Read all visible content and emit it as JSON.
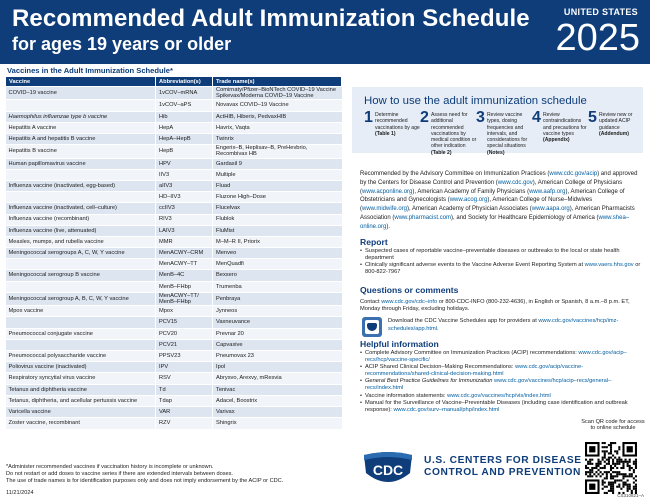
{
  "header": {
    "title": "Recommended Adult Immunization Schedule",
    "subtitle": "for ages 19 years or older",
    "country": "UNITED STATES",
    "year": "2025"
  },
  "vaccine_table": {
    "caption": "Vaccines in the Adult Immunization Schedule*",
    "columns": [
      "Vaccine",
      "Abbreviation(s)",
      "Trade name(s)"
    ],
    "rows": [
      {
        "vaccine": "COVID–19 vaccine",
        "abbr": "1vCOV–mRNA",
        "trade": "Comirnaty/Pfizer–BioNTech COVID–19 Vaccine Spikevax/Moderna COVID–19 Vaccine"
      },
      {
        "vaccine": "",
        "abbr": "1vCOV–aPS",
        "trade": "Novavax COVID–19 Vaccine"
      },
      {
        "vaccine": "Haemophilus influenzae type b vaccine",
        "abbr": "Hib",
        "trade": "ActHIB, Hiberix, PedvaxHIB"
      },
      {
        "vaccine": "Hepatitis A vaccine",
        "abbr": "HepA",
        "trade": "Havrix, Vaqta"
      },
      {
        "vaccine": "Hepatitis A and hepatitis B vaccine",
        "abbr": "HepA–HepB",
        "trade": "Twinrix"
      },
      {
        "vaccine": "Hepatitis B vaccine",
        "abbr": "HepB",
        "trade": "Engerix–B, Heplisav–B, PreHevbrio, Recombivax HB"
      },
      {
        "vaccine": "Human papillomavirus vaccine",
        "abbr": "HPV",
        "trade": "Gardasil 9"
      },
      {
        "vaccine": "",
        "abbr": "IIV3",
        "trade": "Multiple"
      },
      {
        "vaccine": "Influenza vaccine (inactivated, egg-based)",
        "abbr": "aIIV3",
        "trade": "Fluad"
      },
      {
        "vaccine": "",
        "abbr": "HD–IIV3",
        "trade": "Fluzone High–Dose"
      },
      {
        "vaccine": "Influenza vaccine (inactivated, cell–culture)",
        "abbr": "ccIIV3",
        "trade": "Flucelvax"
      },
      {
        "vaccine": "Influenza vaccine (recombinant)",
        "abbr": "RIV3",
        "trade": "Flublok"
      },
      {
        "vaccine": "Influenza vaccine (live, attenuated)",
        "abbr": "LAIV3",
        "trade": "FluMist"
      },
      {
        "vaccine": "Measles, mumps, and rubella vaccine",
        "abbr": "MMR",
        "trade": "M–M–R II, Priorix"
      },
      {
        "vaccine": "Meningococcal serogroups A, C, W, Y vaccine",
        "abbr": "MenACWY–CRM",
        "trade": "Menveo"
      },
      {
        "vaccine": "",
        "abbr": "MenACWY–TT",
        "trade": "MenQuadfi"
      },
      {
        "vaccine": "Meningococcal serogroup B vaccine",
        "abbr": "MenB–4C",
        "trade": "Bexsero"
      },
      {
        "vaccine": "",
        "abbr": "MenB–FHbp",
        "trade": "Trumenba"
      },
      {
        "vaccine": "Meningococcal serogroup A, B, C, W, Y vaccine",
        "abbr": "MenACWY–TT/ MenB–FHbp",
        "trade": "Penbraya"
      },
      {
        "vaccine": "Mpox vaccine",
        "abbr": "Mpox",
        "trade": "Jynneos"
      },
      {
        "vaccine": "",
        "abbr": "PCV15",
        "trade": "Vaxneuvance"
      },
      {
        "vaccine": "Pneumococcal conjugate vaccine",
        "abbr": "PCV20",
        "trade": "Prevnar 20"
      },
      {
        "vaccine": "",
        "abbr": "PCV21",
        "trade": "Capvaxive"
      },
      {
        "vaccine": "Pneumococcal polysaccharide vaccine",
        "abbr": "PPSV23",
        "trade": "Pneumovax 23"
      },
      {
        "vaccine": "Poliovirus vaccine (inactivated)",
        "abbr": "IPV",
        "trade": "Ipol"
      },
      {
        "vaccine": "Respiratory syncytial virus vaccine",
        "abbr": "RSV",
        "trade": "Abrysvo, Arexvy, mResvia"
      },
      {
        "vaccine": "Tetanus and diphtheria vaccine",
        "abbr": "Td",
        "trade": "Tenivac"
      },
      {
        "vaccine": "Tetanus, diphtheria, and acellular pertussis vaccine",
        "abbr": "Tdap",
        "trade": "Adacel, Boostrix"
      },
      {
        "vaccine": "Varicella vaccine",
        "abbr": "VAR",
        "trade": "Varivax"
      },
      {
        "vaccine": "Zoster vaccine, recombinant",
        "abbr": "RZV",
        "trade": "Shingrix"
      }
    ]
  },
  "footnotes": {
    "line1": "*Administer recommended vaccines if vaccination history is incomplete or unknown.",
    "line2": "Do not restart or add doses to vaccine series if there are extended intervals between doses.",
    "line3": "The use of trade names is for identification purposes only and does not imply endorsement by the ACIP or CDC.",
    "date": "11/21/2024"
  },
  "how_to": {
    "title": "How to use the adult immunization schedule",
    "steps": [
      {
        "num": "1",
        "text": "Determine recommended vaccinations by age",
        "bold": "(Table 1)"
      },
      {
        "num": "2",
        "text": "Assess need for additional recommended vaccinations by medical condition or other indication",
        "bold": "(Table 2)"
      },
      {
        "num": "3",
        "text": "Review vaccine types, dosing frequencies and intervals, and considerations for special situations",
        "bold": "(Notes)"
      },
      {
        "num": "4",
        "text": "Review contraindications and precautions for vaccine types",
        "bold": "(Appendix)"
      },
      {
        "num": "5",
        "text": "Review new or updated ACIP guidance",
        "bold": "(Addendum)"
      }
    ]
  },
  "recommended_by": {
    "p1": "Recommended by the Advisory Committee on Immunization Practices (",
    "l1": "www.cdc.gov/acip",
    "p2": ") and approved by the Centers for Disease Control and Prevention (",
    "l2": "www.cdc.gov",
    "p3": "), American College of Physicians (",
    "l3": "www.acponline.org",
    "p4": "), American Academy of Family Physicians (",
    "l4": "www.aafp.org",
    "p5": "), American College of Obstetricians and Gynecologists (",
    "l5": "www.acog.org",
    "p6": "), American College of Nurse–Midwives (",
    "l6": "www.midwife.org",
    "p7": "), American Academy of Physician Associates (",
    "l7": "www.aapa.org",
    "p8": "), American Pharmacists Association (",
    "l8": "www.pharmacist.com",
    "p9": "), and Society for Healthcare Epidemiology of America (",
    "l9": "www.shea–online.org",
    "p10": ")."
  },
  "report": {
    "heading": "Report",
    "b1": "Suspected cases of reportable vaccine–preventable diseases or outbreaks to the local or state health department",
    "b2_text": "Clinically significant adverse events to the Vaccine Adverse Event Reporting System at ",
    "b2_link": "www.vaers.hhs.gov",
    "b2_tail": " or 800-822-7967"
  },
  "questions": {
    "heading": "Questions or comments",
    "t1": "Contact ",
    "l1": "www.cdc.gov/cdc–info",
    "t2": " or 800-CDC-INFO (800-232-4636), in English or Spanish, 8 a.m.–8 p.m. ET, Monday through Friday, excluding holidays."
  },
  "app": {
    "text": "Download the CDC Vaccine Schedules app for providers at ",
    "link": "www.cdc.gov/vaccines/hcp/imz-schedules/app.html",
    "tail": "."
  },
  "helpful": {
    "heading": "Helpful information",
    "items": [
      {
        "text": "Complete Advisory Committee on Immunization Practices (ACIP) recommendations: ",
        "link": "www.cdc.gov/acip–recs/hcp/vaccine-specific/"
      },
      {
        "text": "ACIP Shared Clinical Decision–Making Recommendations: ",
        "link": "www.cdc.gov/acip/vaccine-recommendations/shared-clinical-decision-making.html"
      },
      {
        "text": "General Best Practice Guidelines for Immunization ",
        "link": "www.cdc.gov/vaccines/hcp/acip–recs/general–recs/index.html"
      },
      {
        "text": "Vaccine information statements: ",
        "link": "www.cdc.gov/vaccines/hcp/vis/index.html"
      },
      {
        "text": "Manual for the Surveillance of Vaccine–Preventable Diseases (including case identification and outbreak response): ",
        "link": "www.cdc.gov/surv–manual/php/index.html"
      }
    ]
  },
  "footer": {
    "logo": "CDC",
    "org_line1": "U.S. CENTERS FOR DISEASE",
    "org_line2": "CONTROL AND PREVENTION",
    "qr_caption": "Scan QR code for access to online schedule",
    "code": "CS310821–A",
    "app_icon_label": "CDC"
  },
  "colors": {
    "brand_navy": "#0e3d7a",
    "link_blue": "#005ea2",
    "row_light": "#dde5f0"
  }
}
